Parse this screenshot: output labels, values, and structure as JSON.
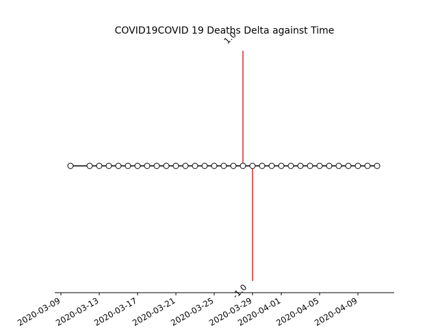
{
  "chart_data": {
    "type": "line",
    "title": "COVID19COVID 19 Deaths Delta against Time",
    "xlabel": "",
    "ylabel": "",
    "x_type": "date",
    "x_ticks": [
      "2020-03-09",
      "2020-03-13",
      "2020-03-17",
      "2020-03-21",
      "2020-03-25",
      "2020-03-29",
      "2020-04-01",
      "2020-04-05",
      "2020-04-09"
    ],
    "series": [
      {
        "x": [
          "2020-03-10",
          "2020-03-12",
          "2020-03-13",
          "2020-03-14",
          "2020-03-15",
          "2020-03-16",
          "2020-03-17",
          "2020-03-18",
          "2020-03-19",
          "2020-03-20",
          "2020-03-21",
          "2020-03-22",
          "2020-03-23",
          "2020-03-24",
          "2020-03-25",
          "2020-03-26",
          "2020-03-27",
          "2020-03-28",
          "2020-03-29",
          "2020-03-30",
          "2020-03-31",
          "2020-04-01",
          "2020-04-02",
          "2020-04-03",
          "2020-04-04",
          "2020-04-05",
          "2020-04-06",
          "2020-04-07",
          "2020-04-08",
          "2020-04-09",
          "2020-04-10",
          "2020-04-11"
        ],
        "values": [
          0,
          0,
          0,
          0,
          0,
          0,
          0,
          0,
          0,
          0,
          0,
          0,
          0,
          0,
          0,
          0,
          0,
          0,
          0,
          0,
          0,
          0,
          0,
          0,
          0,
          0,
          0,
          0,
          0,
          0,
          0,
          0
        ],
        "color": "#000000",
        "marker": "circle-open"
      }
    ],
    "ylim": [
      -1.1,
      1.1
    ],
    "grid": false,
    "annotations": [
      {
        "date": "2020-03-28",
        "from": 0,
        "to": 1,
        "label": "1.0",
        "color": "#d62728"
      },
      {
        "date": "2020-03-29",
        "from": 0,
        "to": -1,
        "label": "-1.0",
        "color": "#d62728"
      }
    ]
  }
}
